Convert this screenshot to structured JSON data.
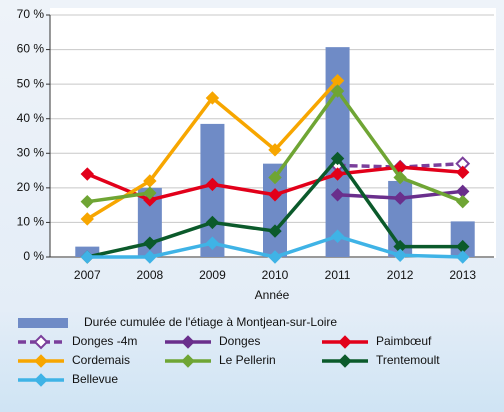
{
  "chart_data": {
    "type": "combo",
    "categories": [
      "2007",
      "2008",
      "2009",
      "2010",
      "2011",
      "2012",
      "2013"
    ],
    "x_label": "Année",
    "ylim": [
      0,
      70
    ],
    "yticks": [
      {
        "value": 0,
        "label": "0 %"
      },
      {
        "value": 10,
        "label": "10 %"
      },
      {
        "value": 20,
        "label": "20 %"
      },
      {
        "value": 30,
        "label": "30 %"
      },
      {
        "value": 40,
        "label": "40 %"
      },
      {
        "value": 50,
        "label": "50 %"
      },
      {
        "value": 60,
        "label": "60 %"
      },
      {
        "value": 70,
        "label": "70 %"
      }
    ],
    "grid": true,
    "series": [
      {
        "name": "Durée cumulée de l'étiage à Montjean-sur-Loire",
        "type": "bar",
        "color": "#6f8bc6",
        "values": [
          3,
          20,
          38.5,
          27,
          60.7,
          22,
          10.3
        ]
      },
      {
        "name": "Donges -4m",
        "type": "line",
        "color": "#7b3f9b",
        "dashed": true,
        "hollow": true,
        "values": [
          null,
          null,
          null,
          null,
          26.5,
          26,
          27
        ]
      },
      {
        "name": "Donges",
        "type": "line",
        "color": "#6a2f8c",
        "values": [
          null,
          null,
          null,
          null,
          18,
          17,
          19
        ]
      },
      {
        "name": "Paimbœuf",
        "type": "line",
        "color": "#e2001a",
        "values": [
          24,
          16.5,
          21,
          18,
          24,
          26,
          24.5
        ]
      },
      {
        "name": "Cordemais",
        "type": "line",
        "color": "#f7a600",
        "values": [
          11,
          22,
          46,
          31,
          51,
          null,
          null
        ]
      },
      {
        "name": "Le Pellerin",
        "type": "line",
        "color": "#6fa534",
        "values": [
          16,
          18.5,
          null,
          23,
          48,
          23,
          16
        ]
      },
      {
        "name": "Trentemoult",
        "type": "line",
        "color": "#0b5a2b",
        "values": [
          0,
          4,
          10,
          7.5,
          28.5,
          3,
          3
        ]
      },
      {
        "name": "Bellevue",
        "type": "line",
        "color": "#3fb3e6",
        "values": [
          0,
          0,
          4,
          0,
          6,
          0.5,
          0
        ]
      }
    ]
  }
}
